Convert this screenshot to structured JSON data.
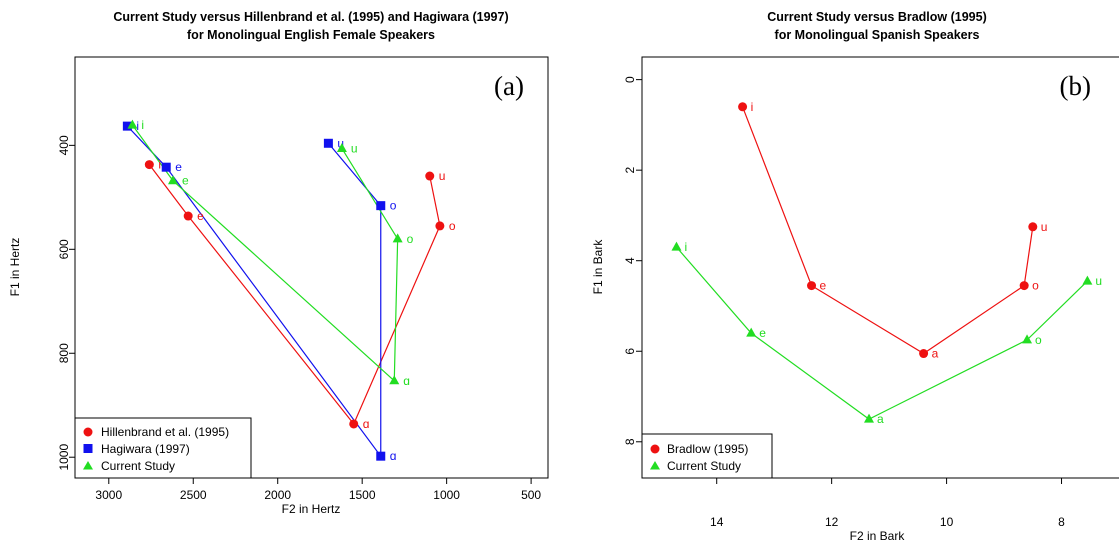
{
  "colors": {
    "red": "#ee1111",
    "blue": "#1111ee",
    "green": "#22dd22",
    "axis": "#000000"
  },
  "chart_data": [
    {
      "type": "line",
      "title_lines": [
        "Current Study versus Hillenbrand et al. (1995) and Hagiwara (1997)",
        "for Monolingual English Female Speakers"
      ],
      "panel_label": "(a)",
      "xlabel": "F2 in Hertz",
      "ylabel": "F1 in Hertz",
      "xlim": [
        3200,
        400
      ],
      "ylim": [
        1040,
        230
      ],
      "x_ticks": [
        3000,
        2500,
        2000,
        1500,
        1000,
        500
      ],
      "y_ticks": [
        400,
        600,
        800,
        1000
      ],
      "legend_position": "bottom-left",
      "series": [
        {
          "name": "Hillenbrand et al. (1995)",
          "color": "red",
          "marker": "circle",
          "points": [
            {
              "label": "i",
              "x": 2760,
              "y": 437
            },
            {
              "label": "e",
              "x": 2530,
              "y": 536
            },
            {
              "label": "ɑ",
              "x": 1550,
              "y": 936
            },
            {
              "label": "o",
              "x": 1040,
              "y": 555
            },
            {
              "label": "u",
              "x": 1100,
              "y": 459
            }
          ]
        },
        {
          "name": "Hagiwara (1997)",
          "color": "blue",
          "marker": "square",
          "points": [
            {
              "label": "i",
              "x": 2890,
              "y": 363
            },
            {
              "label": "e",
              "x": 2660,
              "y": 442
            },
            {
              "label": "ɑ",
              "x": 1390,
              "y": 998
            },
            {
              "label": "o",
              "x": 1390,
              "y": 516
            },
            {
              "label": "u",
              "x": 1700,
              "y": 396
            }
          ]
        },
        {
          "name": "Current Study",
          "color": "green",
          "marker": "triangle",
          "points": [
            {
              "label": "i",
              "x": 2860,
              "y": 361
            },
            {
              "label": "e",
              "x": 2620,
              "y": 468
            },
            {
              "label": "ɑ",
              "x": 1310,
              "y": 853
            },
            {
              "label": "o",
              "x": 1290,
              "y": 580
            },
            {
              "label": "u",
              "x": 1620,
              "y": 406
            }
          ]
        }
      ]
    },
    {
      "type": "line",
      "title_lines": [
        "Current Study versus Bradlow (1995)",
        "for Monolingual Spanish Speakers"
      ],
      "panel_label": "(b)",
      "xlabel": "F2 in Bark",
      "ylabel": "F1 in Bark",
      "xlim": [
        15.3,
        7.0
      ],
      "ylim": [
        8.8,
        -0.5
      ],
      "x_ticks": [
        14,
        12,
        10,
        8
      ],
      "y_ticks": [
        0,
        2,
        4,
        6,
        8
      ],
      "legend_position": "bottom-left",
      "series": [
        {
          "name": "Bradlow (1995)",
          "color": "red",
          "marker": "circle",
          "points": [
            {
              "label": "i",
              "x": 13.55,
              "y": 0.6
            },
            {
              "label": "e",
              "x": 12.35,
              "y": 4.55
            },
            {
              "label": "a",
              "x": 10.4,
              "y": 6.05
            },
            {
              "label": "o",
              "x": 8.65,
              "y": 4.55
            },
            {
              "label": "u",
              "x": 8.5,
              "y": 3.25
            }
          ]
        },
        {
          "name": "Current Study",
          "color": "green",
          "marker": "triangle",
          "points": [
            {
              "label": "i",
              "x": 14.7,
              "y": 3.7
            },
            {
              "label": "e",
              "x": 13.4,
              "y": 5.6
            },
            {
              "label": "a",
              "x": 11.35,
              "y": 7.5
            },
            {
              "label": "o",
              "x": 8.6,
              "y": 5.75
            },
            {
              "label": "u",
              "x": 7.55,
              "y": 4.45
            }
          ]
        }
      ]
    }
  ]
}
